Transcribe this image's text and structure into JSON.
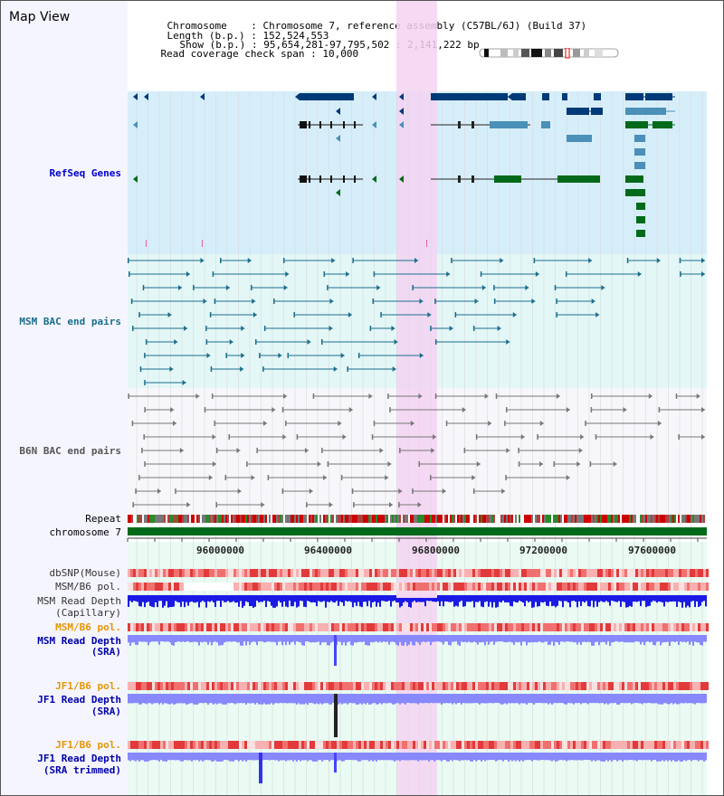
{
  "view": {
    "title": "Map View",
    "chromosome_label": "Chromosome",
    "chromosome_value": "Chromosome 7, reference assembly (C57BL/6J) (Build 37)",
    "length_label": "Length (b.p.)",
    "length_value": "152,524,553",
    "show_label": "Show (b.p.)",
    "show_value": "95,654,281-97,795,502 : 2,141,222 bp",
    "span_label": "Read coverage check span",
    "span_value": "10,000"
  },
  "tracks": {
    "refseq": "RefSeq Genes",
    "msm_bac": "MSM BAC end pairs",
    "b6n_bac": "B6N BAC end pairs",
    "repeat": "Repeat",
    "chromosome": "chromosome 7",
    "dbsnp": "dbSNP(Mouse)",
    "msm_pol": "MSM/B6 pol.",
    "msm_depth_cap_1": "MSM Read Depth",
    "msm_depth_cap_2": "(Capillary)",
    "msm_pol_2": "MSM/B6 pol.",
    "msm_depth_sra_1": "MSM Read Depth",
    "msm_depth_sra_2": "(SRA)",
    "jf1_pol": "JF1/B6 pol.",
    "jf1_depth_sra_1": "JF1 Read Depth",
    "jf1_depth_sra_2": "(SRA)",
    "jf1_pol_2": "JF1/B6 pol.",
    "jf1_depth_trim_1": "JF1 Read Depth",
    "jf1_depth_trim_2": "(SRA trimmed)"
  },
  "axis": {
    "ticks": [
      "96000000",
      "96400000",
      "96800000",
      "97200000",
      "97600000"
    ]
  },
  "colors": {
    "refseq_bg": "#d6eefa",
    "msm_bg": "#e4f7f7",
    "b6n_bg": "#f7f7fb",
    "highlight": "#f5d4f2",
    "gene_dark": "#003a78",
    "gene_mid": "#4a90b8",
    "gene_green": "#006a1a",
    "msm_line": "#1a6e8c",
    "b6n_line": "#777777",
    "depth_blue": "#1a1ae6",
    "depth_light": "#8888ff"
  }
}
